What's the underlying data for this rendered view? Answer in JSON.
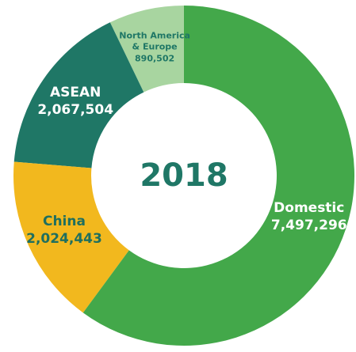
{
  "chart_data": {
    "type": "pie",
    "title": "2018",
    "categories": [
      "Domestic",
      "China",
      "ASEAN",
      "North America & Europe"
    ],
    "values": [
      7497296,
      2024443,
      2067504,
      890502
    ],
    "value_labels": [
      "7,497,296",
      "2,024,443",
      "2,067,504",
      "890,502"
    ],
    "colors": [
      "#43a84a",
      "#f2b81e",
      "#1f7766",
      "#a8d5a0"
    ],
    "label_colors": [
      "#ffffff",
      "#1f6f5f",
      "#ffffff",
      "#1f7766"
    ],
    "donut": true
  }
}
